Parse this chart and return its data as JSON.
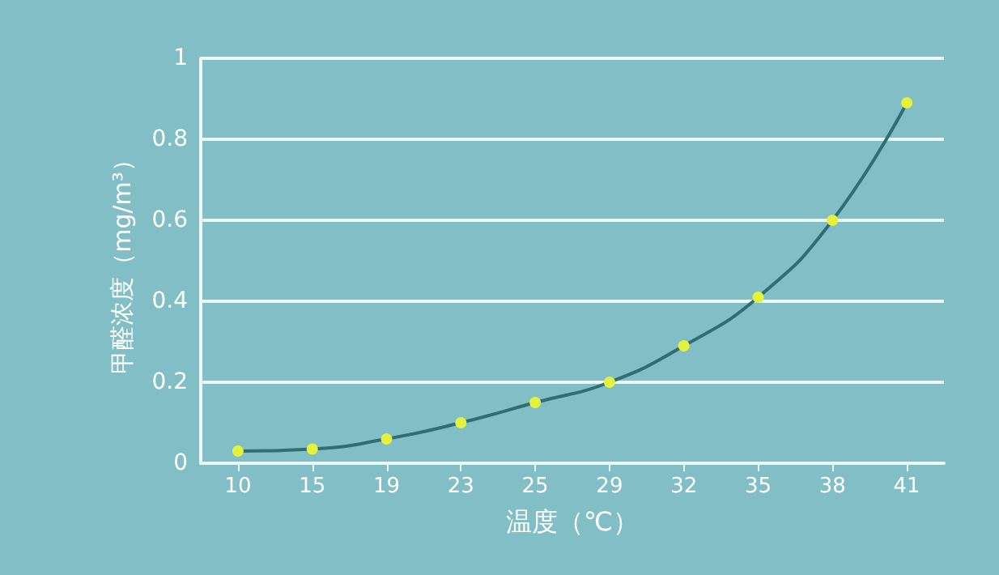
{
  "chart_data": {
    "type": "line",
    "xlabel": "温度（℃）",
    "ylabel": "甲醛浓度（mg/m³）",
    "categories": [
      "10",
      "15",
      "19",
      "23",
      "25",
      "29",
      "32",
      "35",
      "38",
      "41"
    ],
    "series": [
      {
        "color": "#2e6e74",
        "values": [
          0.03,
          0.035,
          0.06,
          0.1,
          0.15,
          0.2,
          0.29,
          0.41,
          0.6,
          0.89
        ]
      }
    ],
    "ylim": [
      0,
      1
    ],
    "yticks": [
      0,
      0.2,
      0.4,
      0.6,
      0.8,
      1
    ],
    "grid": "y",
    "marker": "circle"
  }
}
